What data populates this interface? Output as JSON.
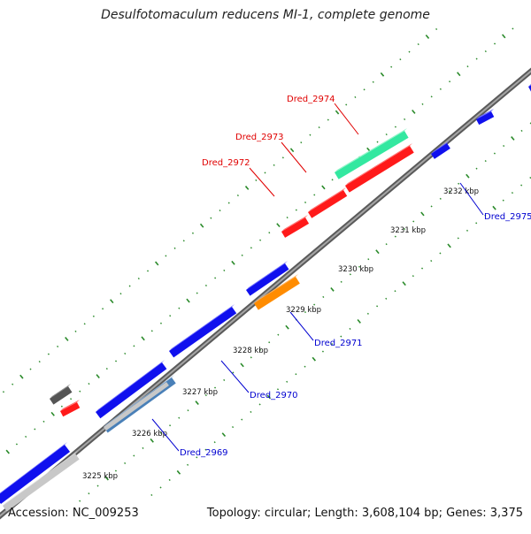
{
  "title": "Desulfotomaculum reducens MI-1, complete genome",
  "footer": {
    "accession": "Accession: NC_009253",
    "summary": "Topology: circular; Length: 3,608,104 bp; Genes: 3,375"
  },
  "colors": {
    "backbone": "#7a7a7a",
    "tick": "#2a8a2a",
    "forward_gene": "#ff1a1a",
    "reverse_gene": "#1010ee",
    "gene_2974": "#33e8a0",
    "gene_2971": "#ff8c00",
    "grey_feature": "#555555",
    "light_feature": "#c8c8c8",
    "steel_feature": "#4a80b8",
    "label_red": "#e00000",
    "label_blue": "#0000d0"
  },
  "scale_ticks": [
    "3225 kbp",
    "3226 kbp",
    "3227 kbp",
    "3228 kbp",
    "3229 kbp",
    "3230 kbp",
    "3231 kbp",
    "3232 kbp"
  ],
  "gene_labels": [
    {
      "name": "Dred_2974",
      "strand": "forward"
    },
    {
      "name": "Dred_2973",
      "strand": "forward"
    },
    {
      "name": "Dred_2972",
      "strand": "forward"
    },
    {
      "name": "Dred_2975",
      "strand": "reverse"
    },
    {
      "name": "Dred_2971",
      "strand": "reverse"
    },
    {
      "name": "Dred_2970",
      "strand": "reverse"
    },
    {
      "name": "Dred_2969",
      "strand": "reverse"
    }
  ]
}
